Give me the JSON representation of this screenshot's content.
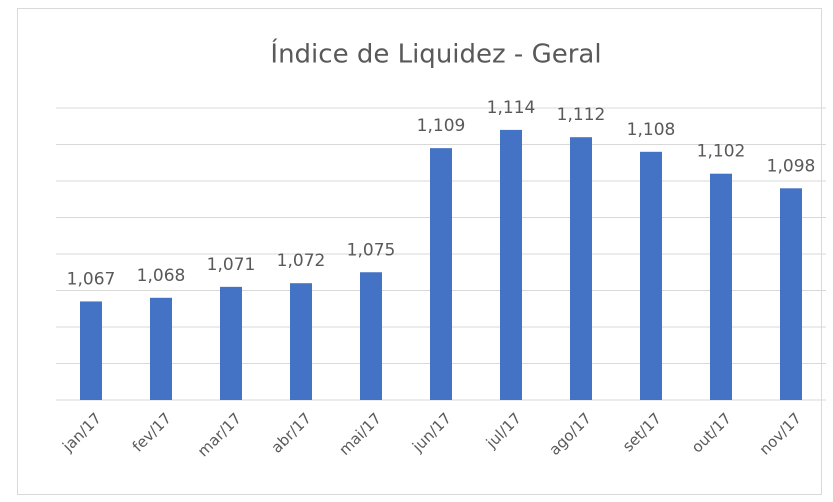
{
  "chart_data": {
    "type": "bar",
    "title": "Índice de Liquidez - Geral",
    "categories": [
      "jan/17",
      "fev/17",
      "mar/17",
      "abr/17",
      "mai/17",
      "jun/17",
      "jul/17",
      "ago/17",
      "set/17",
      "out/17",
      "nov/17"
    ],
    "values": [
      1.067,
      1.068,
      1.071,
      1.072,
      1.075,
      1.109,
      1.114,
      1.112,
      1.108,
      1.102,
      1.098
    ],
    "value_labels": [
      "1,067",
      "1,068",
      "1,071",
      "1,072",
      "1,075",
      "1,109",
      "1,114",
      "1,112",
      "1,108",
      "1,102",
      "1,098"
    ],
    "color": "#4472c4",
    "ylim": [
      1.04,
      1.12
    ],
    "yticks": [
      1.04,
      1.05,
      1.06,
      1.07,
      1.08,
      1.09,
      1.1,
      1.11,
      1.12
    ],
    "grid": true
  }
}
